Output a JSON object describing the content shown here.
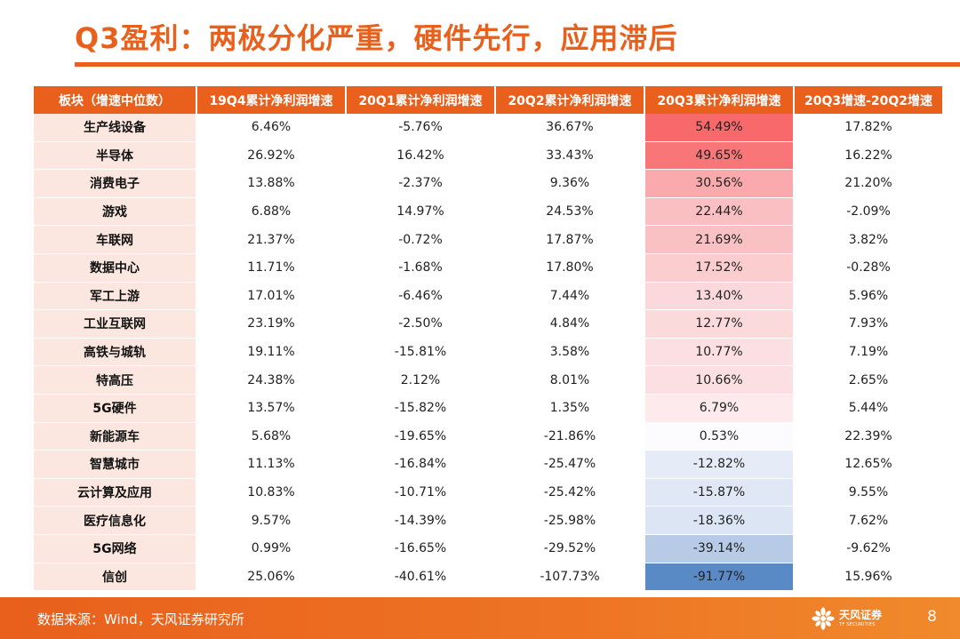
{
  "title": "Q3盈利：两极分化严重，硬件先行，应用滞后",
  "table": {
    "headers": [
      "板块（增速中位数）",
      "19Q4累计净利润增速",
      "20Q1累计净利润增速",
      "20Q2累计净利润增速",
      "20Q3累计净利润增速",
      "20Q3增速-20Q2增速"
    ],
    "rows": [
      [
        "生产线设备",
        "6.46%",
        "-5.76%",
        "36.67%",
        "54.49%",
        "17.82%"
      ],
      [
        "半导体",
        "26.92%",
        "16.42%",
        "33.43%",
        "49.65%",
        "16.22%"
      ],
      [
        "消费电子",
        "13.88%",
        "-2.37%",
        "9.36%",
        "30.56%",
        "21.20%"
      ],
      [
        "游戏",
        "6.88%",
        "14.97%",
        "24.53%",
        "22.44%",
        "-2.09%"
      ],
      [
        "车联网",
        "21.37%",
        "-0.72%",
        "17.87%",
        "21.69%",
        "3.82%"
      ],
      [
        "数据中心",
        "11.71%",
        "-1.68%",
        "17.80%",
        "17.52%",
        "-0.28%"
      ],
      [
        "军工上游",
        "17.01%",
        "-6.46%",
        "7.44%",
        "13.40%",
        "5.96%"
      ],
      [
        "工业互联网",
        "23.19%",
        "-2.50%",
        "4.84%",
        "12.77%",
        "7.93%"
      ],
      [
        "高铁与城轨",
        "19.11%",
        "-15.81%",
        "3.58%",
        "10.77%",
        "7.19%"
      ],
      [
        "特高压",
        "24.38%",
        "2.12%",
        "8.01%",
        "10.66%",
        "2.65%"
      ],
      [
        "5G硬件",
        "13.57%",
        "-15.82%",
        "1.35%",
        "6.79%",
        "5.44%"
      ],
      [
        "新能源车",
        "5.68%",
        "-19.65%",
        "-21.86%",
        "0.53%",
        "22.39%"
      ],
      [
        "智慧城市",
        "11.13%",
        "-16.84%",
        "-25.47%",
        "-12.82%",
        "12.65%"
      ],
      [
        "云计算及应用",
        "10.83%",
        "-10.71%",
        "-25.42%",
        "-15.87%",
        "9.55%"
      ],
      [
        "医疗信息化",
        "9.57%",
        "-14.39%",
        "-25.98%",
        "-18.36%",
        "7.62%"
      ],
      [
        "5G网络",
        "0.99%",
        "-16.65%",
        "-29.52%",
        "-39.14%",
        "-9.62%"
      ],
      [
        "信创",
        "25.06%",
        "-40.61%",
        "-107.73%",
        "-91.77%",
        "15.96%"
      ]
    ],
    "heat_column": 4,
    "heat_colors": {
      "positive": "#F8696B",
      "neutral": "#FCFCFF",
      "negative": "#5A8AC6"
    }
  },
  "footer": {
    "source": "数据来源：Wind，天风证券研究所",
    "logo_cn": "天风证券",
    "logo_en": "TF SECURITIES",
    "page": "8"
  },
  "colors": {
    "accent": "#E8601C",
    "name_cell_bg": "#FBE7DF"
  }
}
